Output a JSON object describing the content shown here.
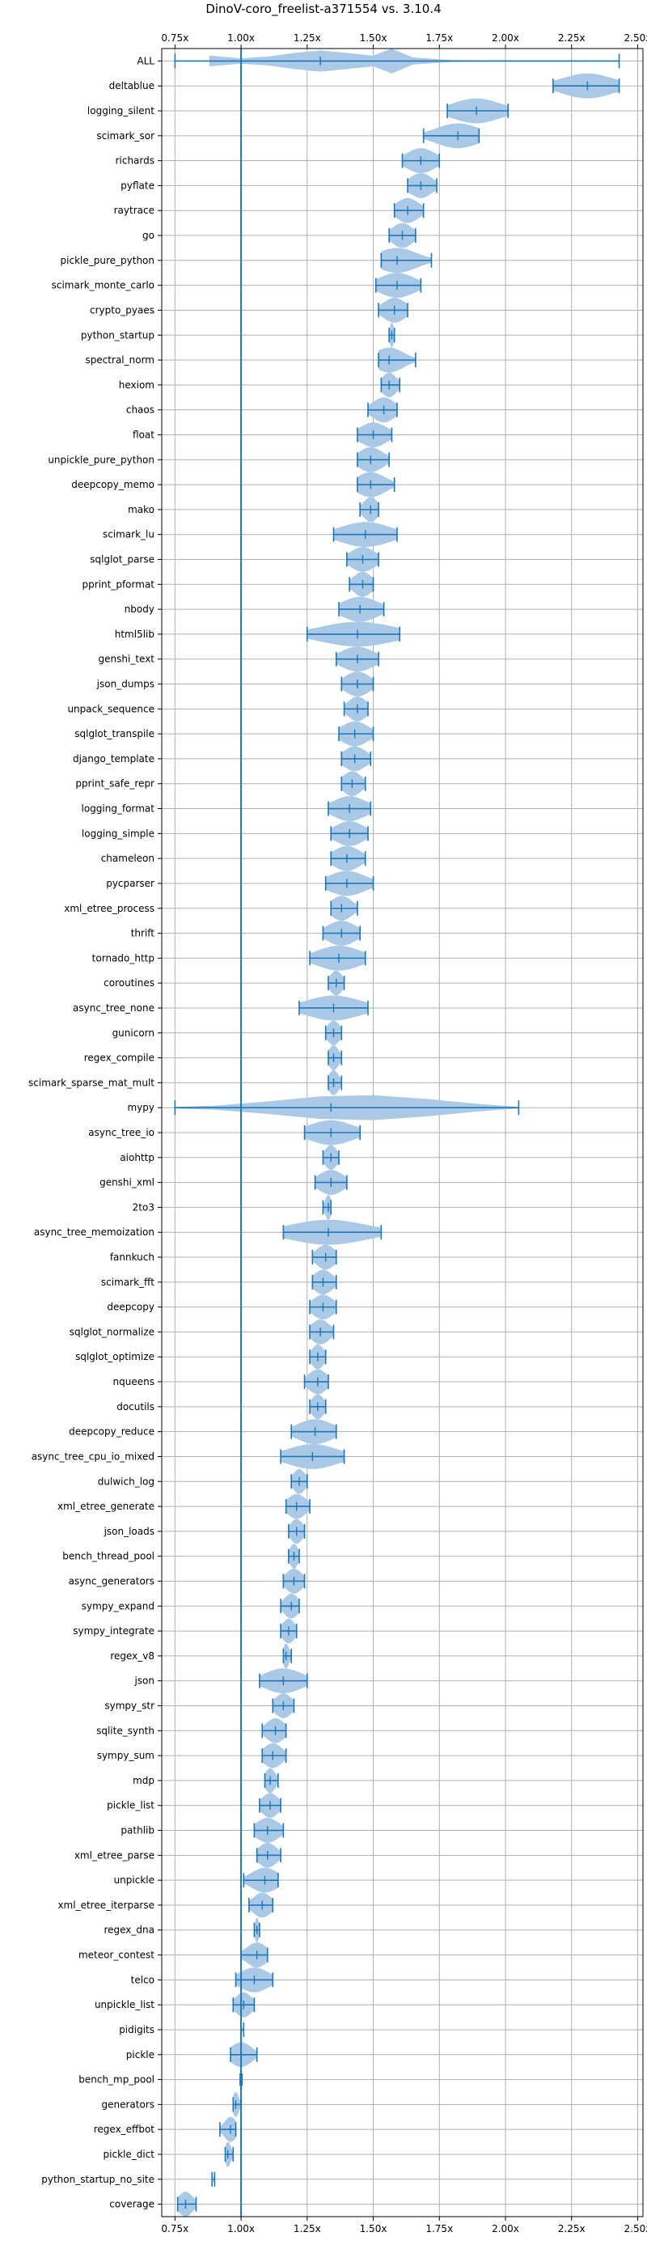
{
  "chart_data": {
    "type": "violin",
    "title": "DinoV-coro_freelist-a371554 vs. 3.10.4",
    "xlabel": "",
    "ylabel": "",
    "xlim": [
      0.7,
      2.52
    ],
    "xticks": [
      0.75,
      1.0,
      1.25,
      1.5,
      1.75,
      2.0,
      2.25,
      2.5
    ],
    "xtick_labels": [
      "0.75x",
      "1.00x",
      "1.25x",
      "1.50x",
      "1.75x",
      "2.00x",
      "2.25x",
      "2.50x"
    ],
    "reference_line": 1.0,
    "grid": true,
    "tick_labels_top_and_bottom": true,
    "colors": {
      "violin_fill": "#a9c9e6",
      "line": "#1f77b4",
      "grid": "#b0b0b0"
    },
    "series": [
      {
        "label": "ALL",
        "min": 0.75,
        "max": 2.43,
        "median": 1.3,
        "shape": [
          [
            0.88,
            0.3
          ],
          [
            1.0,
            0.15
          ],
          [
            1.1,
            0.25
          ],
          [
            1.2,
            0.45
          ],
          [
            1.3,
            0.6
          ],
          [
            1.4,
            0.45
          ],
          [
            1.5,
            0.3
          ],
          [
            1.57,
            0.7
          ],
          [
            1.65,
            0.2
          ],
          [
            1.8,
            0.05
          ],
          [
            2.0,
            0.03
          ],
          [
            2.3,
            0.03
          ]
        ]
      },
      {
        "label": "deltablue",
        "min": 2.18,
        "max": 2.43,
        "median": 2.31
      },
      {
        "label": "logging_silent",
        "min": 1.78,
        "max": 2.01,
        "median": 1.89
      },
      {
        "label": "scimark_sor",
        "min": 1.69,
        "max": 1.9,
        "median": 1.82
      },
      {
        "label": "richards",
        "min": 1.61,
        "max": 1.75,
        "median": 1.68
      },
      {
        "label": "pyflate",
        "min": 1.63,
        "max": 1.74,
        "median": 1.68
      },
      {
        "label": "raytrace",
        "min": 1.58,
        "max": 1.69,
        "median": 1.63
      },
      {
        "label": "go",
        "min": 1.56,
        "max": 1.66,
        "median": 1.61
      },
      {
        "label": "pickle_pure_python",
        "min": 1.53,
        "max": 1.72,
        "median": 1.59
      },
      {
        "label": "scimark_monte_carlo",
        "min": 1.51,
        "max": 1.68,
        "median": 1.59
      },
      {
        "label": "crypto_pyaes",
        "min": 1.52,
        "max": 1.63,
        "median": 1.58
      },
      {
        "label": "python_startup",
        "min": 1.56,
        "max": 1.58,
        "median": 1.57
      },
      {
        "label": "spectral_norm",
        "min": 1.52,
        "max": 1.66,
        "median": 1.56
      },
      {
        "label": "hexiom",
        "min": 1.53,
        "max": 1.6,
        "median": 1.56
      },
      {
        "label": "chaos",
        "min": 1.48,
        "max": 1.59,
        "median": 1.54
      },
      {
        "label": "float",
        "min": 1.44,
        "max": 1.57,
        "median": 1.5
      },
      {
        "label": "unpickle_pure_python",
        "min": 1.44,
        "max": 1.56,
        "median": 1.49
      },
      {
        "label": "deepcopy_memo",
        "min": 1.44,
        "max": 1.58,
        "median": 1.49
      },
      {
        "label": "mako",
        "min": 1.45,
        "max": 1.52,
        "median": 1.49
      },
      {
        "label": "scimark_lu",
        "min": 1.35,
        "max": 1.59,
        "median": 1.47
      },
      {
        "label": "sqlglot_parse",
        "min": 1.4,
        "max": 1.52,
        "median": 1.46
      },
      {
        "label": "pprint_pformat",
        "min": 1.41,
        "max": 1.5,
        "median": 1.46
      },
      {
        "label": "nbody",
        "min": 1.37,
        "max": 1.54,
        "median": 1.45
      },
      {
        "label": "html5lib",
        "min": 1.25,
        "max": 1.6,
        "median": 1.44
      },
      {
        "label": "genshi_text",
        "min": 1.36,
        "max": 1.52,
        "median": 1.44
      },
      {
        "label": "json_dumps",
        "min": 1.38,
        "max": 1.5,
        "median": 1.44
      },
      {
        "label": "unpack_sequence",
        "min": 1.39,
        "max": 1.48,
        "median": 1.44
      },
      {
        "label": "sqlglot_transpile",
        "min": 1.37,
        "max": 1.5,
        "median": 1.43
      },
      {
        "label": "django_template",
        "min": 1.38,
        "max": 1.49,
        "median": 1.43
      },
      {
        "label": "pprint_safe_repr",
        "min": 1.38,
        "max": 1.47,
        "median": 1.42
      },
      {
        "label": "logging_format",
        "min": 1.33,
        "max": 1.49,
        "median": 1.41
      },
      {
        "label": "logging_simple",
        "min": 1.34,
        "max": 1.48,
        "median": 1.41
      },
      {
        "label": "chameleon",
        "min": 1.34,
        "max": 1.47,
        "median": 1.4
      },
      {
        "label": "pycparser",
        "min": 1.32,
        "max": 1.5,
        "median": 1.4
      },
      {
        "label": "xml_etree_process",
        "min": 1.34,
        "max": 1.44,
        "median": 1.38
      },
      {
        "label": "thrift",
        "min": 1.31,
        "max": 1.45,
        "median": 1.38
      },
      {
        "label": "tornado_http",
        "min": 1.26,
        "max": 1.47,
        "median": 1.37
      },
      {
        "label": "coroutines",
        "min": 1.33,
        "max": 1.39,
        "median": 1.36
      },
      {
        "label": "async_tree_none",
        "min": 1.22,
        "max": 1.48,
        "median": 1.35
      },
      {
        "label": "gunicorn",
        "min": 1.32,
        "max": 1.38,
        "median": 1.35
      },
      {
        "label": "regex_compile",
        "min": 1.33,
        "max": 1.38,
        "median": 1.35
      },
      {
        "label": "scimark_sparse_mat_mult",
        "min": 1.33,
        "max": 1.38,
        "median": 1.35
      },
      {
        "label": "mypy",
        "min": 0.75,
        "max": 2.05,
        "median": 1.34,
        "shape": [
          [
            0.75,
            0.03
          ],
          [
            0.9,
            0.08
          ],
          [
            1.1,
            0.25
          ],
          [
            1.3,
            0.45
          ],
          [
            1.5,
            0.5
          ],
          [
            1.7,
            0.35
          ],
          [
            1.9,
            0.15
          ],
          [
            2.05,
            0.03
          ]
        ]
      },
      {
        "label": "async_tree_io",
        "min": 1.24,
        "max": 1.45,
        "median": 1.34
      },
      {
        "label": "aiohttp",
        "min": 1.31,
        "max": 1.37,
        "median": 1.34
      },
      {
        "label": "genshi_xml",
        "min": 1.28,
        "max": 1.4,
        "median": 1.34
      },
      {
        "label": "2to3",
        "min": 1.31,
        "max": 1.34,
        "median": 1.33
      },
      {
        "label": "async_tree_memoization",
        "min": 1.16,
        "max": 1.53,
        "median": 1.33
      },
      {
        "label": "fannkuch",
        "min": 1.27,
        "max": 1.36,
        "median": 1.32
      },
      {
        "label": "scimark_fft",
        "min": 1.27,
        "max": 1.36,
        "median": 1.31
      },
      {
        "label": "deepcopy",
        "min": 1.26,
        "max": 1.36,
        "median": 1.31
      },
      {
        "label": "sqlglot_normalize",
        "min": 1.26,
        "max": 1.35,
        "median": 1.3
      },
      {
        "label": "sqlglot_optimize",
        "min": 1.26,
        "max": 1.32,
        "median": 1.29
      },
      {
        "label": "nqueens",
        "min": 1.24,
        "max": 1.33,
        "median": 1.29
      },
      {
        "label": "docutils",
        "min": 1.26,
        "max": 1.32,
        "median": 1.29
      },
      {
        "label": "deepcopy_reduce",
        "min": 1.19,
        "max": 1.36,
        "median": 1.28
      },
      {
        "label": "async_tree_cpu_io_mixed",
        "min": 1.15,
        "max": 1.39,
        "median": 1.27
      },
      {
        "label": "dulwich_log",
        "min": 1.19,
        "max": 1.25,
        "median": 1.22
      },
      {
        "label": "xml_etree_generate",
        "min": 1.17,
        "max": 1.26,
        "median": 1.21
      },
      {
        "label": "json_loads",
        "min": 1.18,
        "max": 1.24,
        "median": 1.21
      },
      {
        "label": "bench_thread_pool",
        "min": 1.18,
        "max": 1.22,
        "median": 1.2
      },
      {
        "label": "async_generators",
        "min": 1.16,
        "max": 1.24,
        "median": 1.2
      },
      {
        "label": "sympy_expand",
        "min": 1.15,
        "max": 1.22,
        "median": 1.19
      },
      {
        "label": "sympy_integrate",
        "min": 1.15,
        "max": 1.21,
        "median": 1.18
      },
      {
        "label": "regex_v8",
        "min": 1.16,
        "max": 1.19,
        "median": 1.17
      },
      {
        "label": "json",
        "min": 1.07,
        "max": 1.25,
        "median": 1.16
      },
      {
        "label": "sympy_str",
        "min": 1.12,
        "max": 1.2,
        "median": 1.16
      },
      {
        "label": "sqlite_synth",
        "min": 1.08,
        "max": 1.17,
        "median": 1.13
      },
      {
        "label": "sympy_sum",
        "min": 1.08,
        "max": 1.17,
        "median": 1.12
      },
      {
        "label": "mdp",
        "min": 1.09,
        "max": 1.14,
        "median": 1.11
      },
      {
        "label": "pickle_list",
        "min": 1.07,
        "max": 1.15,
        "median": 1.11
      },
      {
        "label": "pathlib",
        "min": 1.05,
        "max": 1.16,
        "median": 1.1
      },
      {
        "label": "xml_etree_parse",
        "min": 1.06,
        "max": 1.15,
        "median": 1.1
      },
      {
        "label": "unpickle",
        "min": 1.01,
        "max": 1.14,
        "median": 1.09
      },
      {
        "label": "xml_etree_iterparse",
        "min": 1.03,
        "max": 1.12,
        "median": 1.08
      },
      {
        "label": "regex_dna",
        "min": 1.05,
        "max": 1.07,
        "median": 1.06
      },
      {
        "label": "meteor_contest",
        "min": 1.0,
        "max": 1.1,
        "median": 1.06
      },
      {
        "label": "telco",
        "min": 0.98,
        "max": 1.12,
        "median": 1.05
      },
      {
        "label": "unpickle_list",
        "min": 0.97,
        "max": 1.05,
        "median": 1.01
      },
      {
        "label": "pidigits",
        "min": 1.0,
        "max": 1.01,
        "median": 1.0
      },
      {
        "label": "pickle",
        "min": 0.96,
        "max": 1.06,
        "median": 1.0
      },
      {
        "label": "bench_mp_pool",
        "min": 1.0,
        "max": 1.0,
        "median": 1.0
      },
      {
        "label": "generators",
        "min": 0.97,
        "max": 1.0,
        "median": 0.98
      },
      {
        "label": "regex_effbot",
        "min": 0.92,
        "max": 0.98,
        "median": 0.96
      },
      {
        "label": "pickle_dict",
        "min": 0.94,
        "max": 0.97,
        "median": 0.95
      },
      {
        "label": "python_startup_no_site",
        "min": 0.89,
        "max": 0.9,
        "median": 0.9
      },
      {
        "label": "coverage",
        "min": 0.76,
        "max": 0.83,
        "median": 0.79
      }
    ]
  }
}
